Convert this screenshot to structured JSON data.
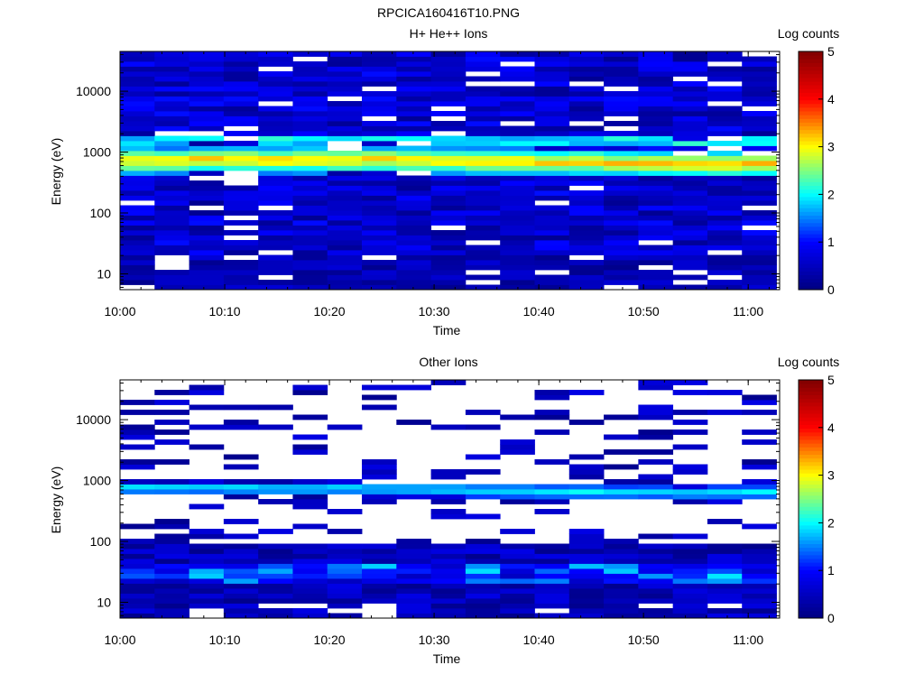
{
  "figure_title": "RPCICA160416T10.PNG",
  "colors": {
    "cmap": [
      "#00007f",
      "#0000ff",
      "#00ffff",
      "#ffff00",
      "#ff0000",
      "#7f0000"
    ],
    "missing": "#ffffff"
  },
  "chart_data": [
    {
      "type": "heatmap",
      "title": "H+ He++ Ions",
      "xlabel": "Time",
      "ylabel": "Energy (eV)",
      "yscale": "log",
      "ylim": [
        5.5,
        45000
      ],
      "xlim_minutes": [
        0,
        63
      ],
      "x_tick_labels": [
        "10:00",
        "10:10",
        "10:20",
        "10:30",
        "10:40",
        "10:50",
        "11:00"
      ],
      "x_tick_minutes": [
        0,
        10,
        20,
        30,
        40,
        50,
        60
      ],
      "y_tick_labels": [
        "10",
        "100",
        "1000",
        "10000"
      ],
      "y_tick_values": [
        10,
        100,
        1000,
        10000
      ],
      "colorbar": {
        "label": "Log counts",
        "range": [
          0,
          5
        ],
        "tick_labels": [
          "0",
          "1",
          "2",
          "3",
          "4",
          "5"
        ]
      },
      "time_columns": 19,
      "column_width_minutes": 3.3,
      "energy_bins": 48,
      "band_peak_log_counts": 3.1,
      "band_center_eV": [
        720,
        720,
        760,
        760,
        740,
        740,
        760,
        760,
        740,
        720,
        720,
        700,
        680,
        680,
        660,
        660,
        640,
        640,
        660
      ]
    },
    {
      "type": "heatmap",
      "title": "Other Ions",
      "xlabel": "Time",
      "ylabel": "Energy (eV)",
      "yscale": "log",
      "ylim": [
        5.5,
        45000
      ],
      "xlim_minutes": [
        0,
        63
      ],
      "x_tick_labels": [
        "10:00",
        "10:10",
        "10:20",
        "10:30",
        "10:40",
        "10:50",
        "11:00"
      ],
      "x_tick_minutes": [
        0,
        10,
        20,
        30,
        40,
        50,
        60
      ],
      "y_tick_labels": [
        "10",
        "100",
        "1000",
        "10000"
      ],
      "y_tick_values": [
        10,
        100,
        1000,
        10000
      ],
      "colorbar": {
        "label": "Log counts",
        "range": [
          0,
          5
        ],
        "tick_labels": [
          "0",
          "1",
          "2",
          "3",
          "4",
          "5"
        ]
      },
      "time_columns": 19,
      "column_width_minutes": 3.3,
      "energy_bins": 48,
      "band_peak_log_counts": 1.9,
      "band_center_eV": [
        760,
        760,
        760,
        760,
        740,
        740,
        740,
        720,
        720,
        700,
        680,
        680,
        660,
        660,
        640,
        640,
        620,
        640,
        660
      ]
    }
  ]
}
